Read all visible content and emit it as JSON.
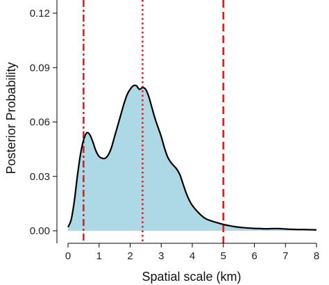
{
  "chart_data": {
    "type": "area",
    "title": "",
    "xlabel": "Spatial scale (km)",
    "ylabel": "Posterior Probability",
    "xlim": [
      0,
      8
    ],
    "ylim": [
      0,
      0.125
    ],
    "xticks": [
      0,
      1,
      2,
      3,
      4,
      5,
      6,
      7,
      8
    ],
    "xtick_labels": [
      "0",
      "1",
      "2",
      "3",
      "4",
      "5",
      "6",
      "7",
      "8"
    ],
    "yticks": [
      0.0,
      0.03,
      0.06,
      0.09,
      0.12
    ],
    "ytick_labels": [
      "0.00",
      "0.03",
      "0.06",
      "0.09",
      "0.12"
    ],
    "grid": false,
    "fill_color": "#add8e6",
    "line_color": "#000000",
    "vline_color": "#e41a1c",
    "series": [
      {
        "x": [
          0.0,
          0.1,
          0.2,
          0.3,
          0.4,
          0.5,
          0.6,
          0.7,
          0.8,
          0.9,
          1.0,
          1.1,
          1.2,
          1.3,
          1.4,
          1.5,
          1.6,
          1.7,
          1.8,
          1.9,
          2.0,
          2.1,
          2.2,
          2.3,
          2.4,
          2.5,
          2.6,
          2.7,
          2.8,
          2.9,
          3.0,
          3.1,
          3.2,
          3.3,
          3.4,
          3.5,
          3.6,
          3.7,
          3.8,
          3.9,
          4.0,
          4.2,
          4.4,
          4.6,
          4.8,
          5.0,
          5.2,
          5.4,
          5.6,
          5.8,
          6.0,
          6.2,
          6.4,
          6.6,
          6.8,
          7.0,
          7.2,
          7.4,
          7.6,
          7.8,
          8.0
        ],
        "y": [
          0.002,
          0.006,
          0.016,
          0.03,
          0.042,
          0.05,
          0.054,
          0.053,
          0.049,
          0.044,
          0.041,
          0.04,
          0.04,
          0.042,
          0.046,
          0.052,
          0.058,
          0.064,
          0.07,
          0.075,
          0.078,
          0.08,
          0.08,
          0.078,
          0.079,
          0.078,
          0.074,
          0.068,
          0.062,
          0.057,
          0.052,
          0.046,
          0.041,
          0.038,
          0.036,
          0.034,
          0.031,
          0.026,
          0.021,
          0.017,
          0.014,
          0.01,
          0.007,
          0.0055,
          0.0045,
          0.0035,
          0.0028,
          0.0022,
          0.0018,
          0.0015,
          0.0013,
          0.0012,
          0.0011,
          0.0012,
          0.0012,
          0.001,
          0.0008,
          0.0007,
          0.0007,
          0.0006,
          0.0005
        ]
      }
    ],
    "vlines": [
      {
        "x": 0.5,
        "style": "dashdot"
      },
      {
        "x": 2.4,
        "style": "dotted"
      },
      {
        "x": 5.0,
        "style": "dashed"
      }
    ]
  }
}
